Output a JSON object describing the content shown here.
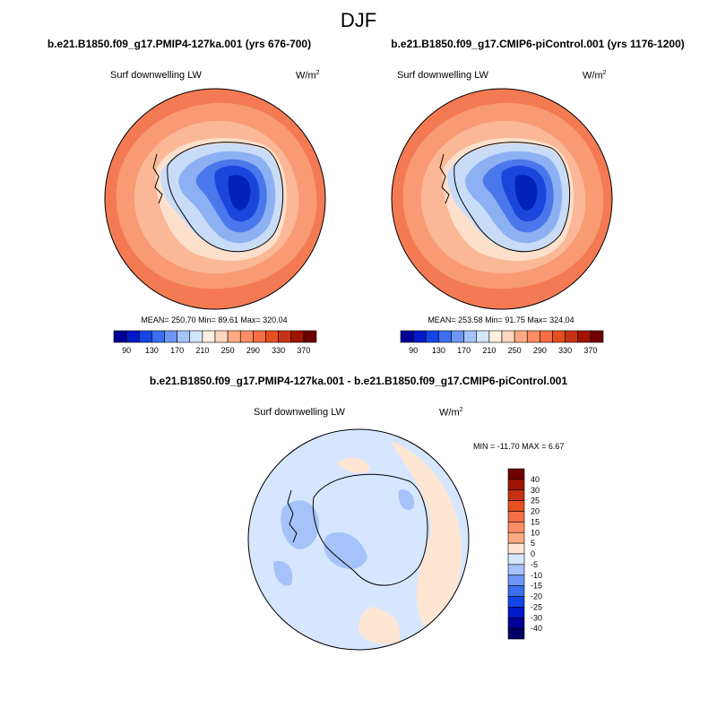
{
  "title": "DJF",
  "variable": "Surf downwelling LW",
  "unit": "W/m",
  "unit_exp": "2",
  "panels": {
    "left": {
      "title": "b.e21.B1850.f09_g17.PMIP4-127ka.001 (yrs 676-700)",
      "stats": "MEAN= 250.70  Min=  89.61  Max= 320.04"
    },
    "right": {
      "title": "b.e21.B1850.f09_g17.CMIP6-piControl.001 (yrs 1176-1200)",
      "stats": "MEAN= 253.58  Min=  91.75  Max= 324.04"
    },
    "diff": {
      "title": "b.e21.B1850.f09_g17.PMIP4-127ka.001 - b.e21.B1850.f09_g17.CMIP6-piControl.001",
      "stats": "MIN = -11.70 MAX =   6.67"
    }
  },
  "chart_data": [
    {
      "type": "heatmap",
      "projection": "south-polar-stereographic",
      "title": "b.e21.B1850.f09_g17.PMIP4-127ka.001 (yrs 676-700)",
      "subtitle": "Surf downwelling LW",
      "units": "W/m2",
      "mean": 250.7,
      "min": 89.61,
      "max": 320.04,
      "colorbar_ticks": [
        90,
        130,
        170,
        210,
        250,
        290,
        330,
        370
      ],
      "colorbar_colors": [
        "#000096",
        "#0019c8",
        "#1446e6",
        "#3c6ef0",
        "#6e96f5",
        "#a5c3fa",
        "#d2e6fa",
        "#fff0e1",
        "#ffd7be",
        "#ffaa82",
        "#ff8c64",
        "#f56e46",
        "#e6501e",
        "#c83214",
        "#a01400",
        "#6e0000"
      ]
    },
    {
      "type": "heatmap",
      "projection": "south-polar-stereographic",
      "title": "b.e21.B1850.f09_g17.CMIP6-piControl.001 (yrs 1176-1200)",
      "subtitle": "Surf downwelling LW",
      "units": "W/m2",
      "mean": 253.58,
      "min": 91.75,
      "max": 324.04,
      "colorbar_ticks": [
        90,
        130,
        170,
        210,
        250,
        290,
        330,
        370
      ],
      "colorbar_colors": [
        "#000096",
        "#0019c8",
        "#1446e6",
        "#3c6ef0",
        "#6e96f5",
        "#a5c3fa",
        "#d2e6fa",
        "#fff0e1",
        "#ffd7be",
        "#ffaa82",
        "#ff8c64",
        "#f56e46",
        "#e6501e",
        "#c83214",
        "#a01400",
        "#6e0000"
      ]
    },
    {
      "type": "heatmap",
      "projection": "south-polar-stereographic",
      "title": "b.e21.B1850.f09_g17.PMIP4-127ka.001 - b.e21.B1850.f09_g17.CMIP6-piControl.001",
      "subtitle": "Surf downwelling LW",
      "units": "W/m2",
      "min": -11.7,
      "max": 6.67,
      "colorbar_ticks": [
        40,
        30,
        25,
        20,
        15,
        10,
        5,
        0,
        -5,
        -10,
        -15,
        -20,
        -25,
        -30,
        -40
      ],
      "colorbar_colors": [
        "#6e0000",
        "#a01400",
        "#c83214",
        "#e6501e",
        "#f56e46",
        "#ff8c64",
        "#ffaa82",
        "#ffe6d2",
        "#d7e6ff",
        "#a5c3fa",
        "#6e96f5",
        "#3c6ef0",
        "#1446e6",
        "#0019c8",
        "#000096",
        "#000064"
      ]
    }
  ],
  "colors": {
    "ocean_left": "#f47a54",
    "ocean_right": "#f47a54",
    "diff_base": "#d7e6ff",
    "diff_warm": "#ffe6d2"
  }
}
